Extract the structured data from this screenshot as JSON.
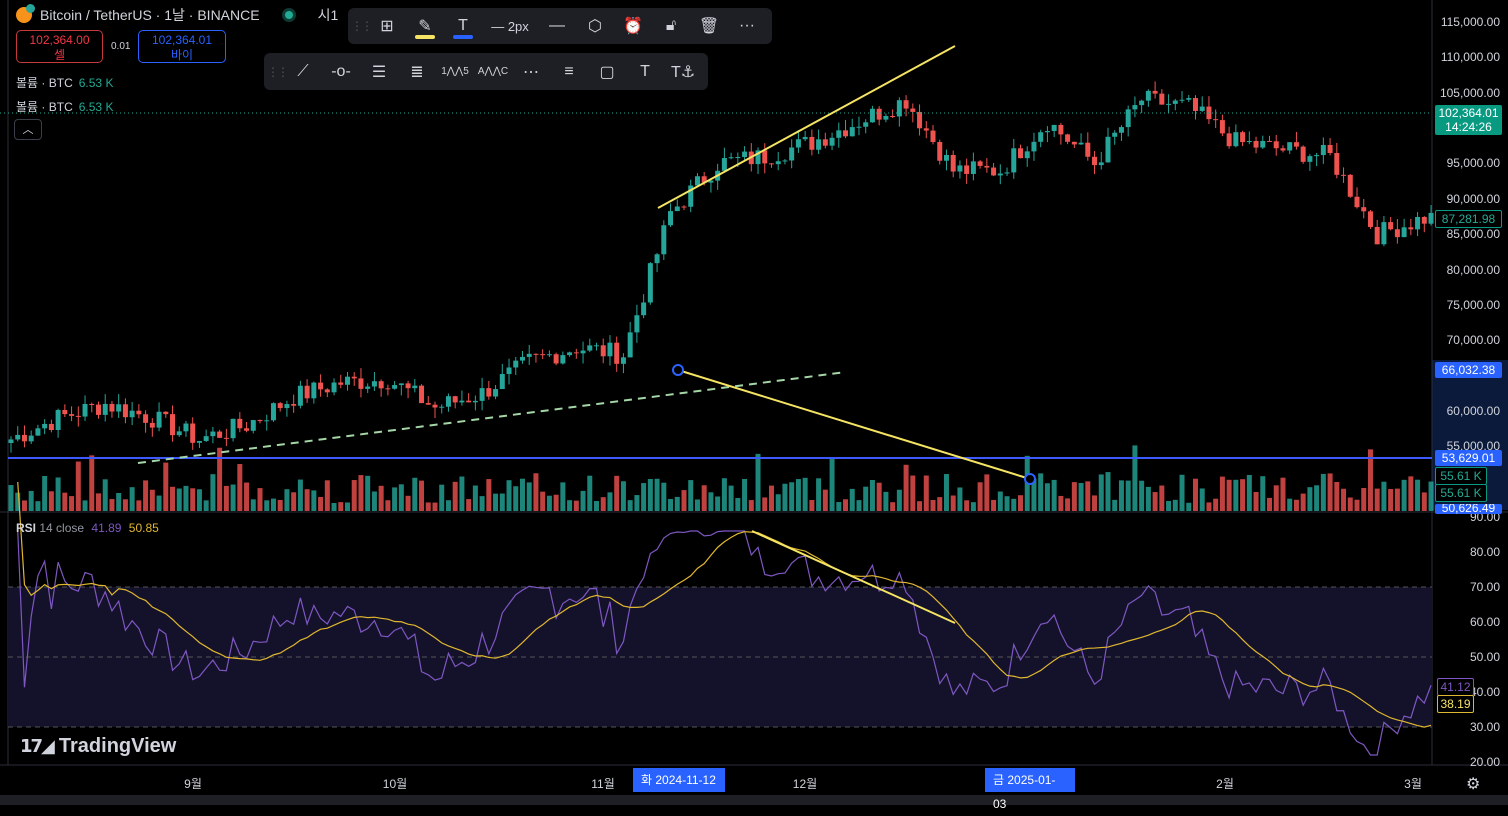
{
  "header": {
    "symbol": "Bitcoin / TetherUS · 1날 · BINANCE",
    "extra": "시1"
  },
  "trade": {
    "sell_price": "102,364.00",
    "sell_label": "셀",
    "spread": "0.01",
    "buy_price": "102,364.01",
    "buy_label": "바이"
  },
  "volume_legends": [
    {
      "label": "볼륨 · BTC",
      "value": "6.53 K"
    },
    {
      "label": "볼륨 · BTC",
      "value": "6.53 K"
    }
  ],
  "draw_toolbar": {
    "width_label": "2px",
    "icons": [
      "add-template-icon",
      "pencil-color-icon",
      "text-color-icon",
      "line-width-icon",
      "line-style-icon",
      "settings-hex-icon",
      "add-alert-icon",
      "unlock-icon",
      "trash-icon",
      "more-icon"
    ]
  },
  "tools_toolbar": {
    "icons": [
      "trend-line-icon",
      "horizontal-ray-icon",
      "parallel-channel-icon",
      "fib-retracement-icon",
      "elliott-wave-icon",
      "abcd-pattern-icon",
      "regression-trend-icon",
      "flat-top-bottom-icon",
      "rectangle-icon",
      "text-icon",
      "anchored-text-icon"
    ],
    "labels": {
      "elliott": [
        "1",
        "5"
      ],
      "abcd": [
        "A",
        "C"
      ]
    }
  },
  "price_axis": {
    "labels": [
      "115,000.00",
      "110,000.00",
      "105,000.00",
      "95,000.00",
      "90,000.00",
      "85,000.00",
      "80,000.00",
      "75,000.00",
      "70,000.00",
      "60,000.00",
      "55,000.00"
    ],
    "values": [
      115000,
      110000,
      105000,
      95000,
      90000,
      85000,
      80000,
      75000,
      70000,
      60000,
      55000
    ]
  },
  "badges": {
    "last_price": "102,364.01",
    "countdown": "14:24:26",
    "close_marker": "87,281.98",
    "point_a": "66,032.38",
    "hline": "53,629.01",
    "vol1": "55.61 K",
    "vol2": "55.61 K",
    "point_b": "50,626.49"
  },
  "rsi": {
    "label": "RSI",
    "params": "14 close",
    "value": "41.89",
    "ma_value": "50.85",
    "axis": [
      "90.00",
      "80.00",
      "70.00",
      "60.00",
      "50.00",
      "40.00",
      "30.00",
      "20.00"
    ],
    "axis_values": [
      90,
      80,
      70,
      60,
      50,
      40,
      30,
      20
    ],
    "rsi_badge": "41.12",
    "ma_badge": "38.19"
  },
  "time_axis": {
    "months": [
      "9월",
      "10월",
      "11월",
      "12월",
      "2월",
      "3월"
    ],
    "sel1": "화 2024-11-12",
    "sel2": "금 2025-01-03"
  },
  "brand": "TradingView",
  "colors": {
    "up": "#26a69a",
    "down": "#ef5350",
    "drawing": "#f5e463",
    "hline": "#3d5afe",
    "rsi": "#7e57c2",
    "rsi_ma": "#e0b730"
  },
  "chart_data": {
    "type": "candlestick",
    "interval": "1D",
    "start": "2024-08-05",
    "weekly_close_anchors": [
      56000,
      59000,
      61000,
      59000,
      56000,
      58000,
      62000,
      64000,
      64500,
      60500,
      62500,
      67000,
      69000,
      68000,
      88000,
      95000,
      96000,
      98000,
      101000,
      104000,
      94000,
      94000,
      101000,
      95000,
      104000,
      103000,
      98000,
      97000,
      96000,
      85000,
      87282
    ],
    "price_range": [
      50000,
      116000
    ],
    "rsi_range": [
      20,
      90
    ]
  }
}
